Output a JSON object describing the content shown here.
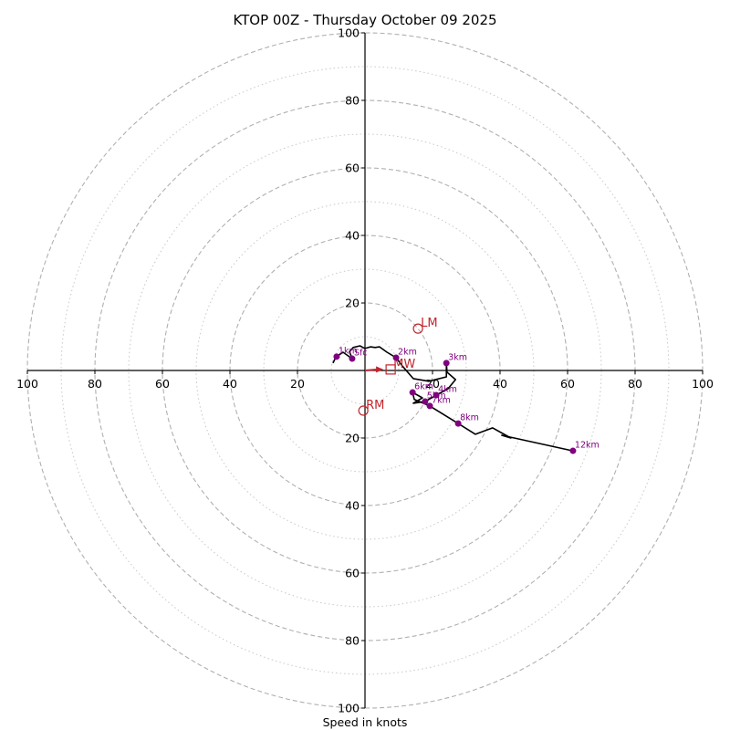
{
  "chart_data": {
    "type": "line",
    "subtype": "hodograph",
    "title": "KTOP 00Z - Thursday October 09 2025",
    "xlabel": "Speed in knots",
    "ylabel": "",
    "range_knots": 100,
    "ring_major": [
      20,
      40,
      60,
      80,
      100
    ],
    "ring_minor": [
      10,
      30,
      50,
      70,
      90
    ],
    "tick_labels": [
      "20",
      "40",
      "60",
      "80",
      "100"
    ],
    "grid": true,
    "trace_units": "knots (u, v)",
    "trace": [
      [
        -9.5,
        2.2
      ],
      [
        -8.9,
        3.4
      ],
      [
        -8.4,
        4.1
      ],
      [
        -6.5,
        5.4
      ],
      [
        -3.8,
        3.5
      ],
      [
        -4.6,
        5.6
      ],
      [
        -3.5,
        6.8
      ],
      [
        -1.5,
        7.3
      ],
      [
        0,
        6.5
      ],
      [
        1.6,
        7.0
      ],
      [
        3.0,
        6.8
      ],
      [
        4.3,
        7.0
      ],
      [
        6.5,
        5.4
      ],
      [
        9.2,
        3.8
      ],
      [
        11.0,
        1.4
      ],
      [
        14.3,
        -2.4
      ],
      [
        18.9,
        -3.2
      ],
      [
        24.1,
        -1.9
      ],
      [
        24.1,
        2.2
      ],
      [
        24.3,
        -0.5
      ],
      [
        26.8,
        -2.7
      ],
      [
        24.6,
        -5.4
      ],
      [
        21.1,
        -7.3
      ],
      [
        17.8,
        -9.2
      ],
      [
        14.3,
        -9.7
      ],
      [
        17.0,
        -8.1
      ],
      [
        14.1,
        -6.5
      ],
      [
        14.6,
        -8.6
      ],
      [
        19.2,
        -10.5
      ],
      [
        27.6,
        -15.7
      ],
      [
        32.7,
        -18.9
      ],
      [
        37.8,
        -17.0
      ],
      [
        43.2,
        -20.0
      ],
      [
        40.5,
        -19.2
      ],
      [
        61.6,
        -23.8
      ]
    ],
    "height_markers": [
      {
        "label": "Sfc",
        "u": -3.8,
        "v": 3.5
      },
      {
        "label": "1km",
        "u": -8.4,
        "v": 4.1
      },
      {
        "label": "2km",
        "u": 9.2,
        "v": 3.8
      },
      {
        "label": "3km",
        "u": 24.1,
        "v": 2.2
      },
      {
        "label": "4km",
        "u": 21.1,
        "v": -7.3
      },
      {
        "label": "5km",
        "u": 17.8,
        "v": -9.2
      },
      {
        "label": "6km",
        "u": 14.1,
        "v": -6.5
      },
      {
        "label": "7km",
        "u": 19.2,
        "v": -10.5
      },
      {
        "label": "8km",
        "u": 27.6,
        "v": -15.7
      },
      {
        "label": "12km",
        "u": 61.6,
        "v": -23.8
      }
    ],
    "storm_motion": [
      {
        "label": "LM",
        "u": 15.7,
        "v": 12.4,
        "marker": "circle"
      },
      {
        "label": "RM",
        "u": -0.5,
        "v": -11.9,
        "marker": "circle"
      },
      {
        "label": "MW",
        "u": 7.6,
        "v": 0.3,
        "marker": "square"
      }
    ],
    "mean_wind_arrow": {
      "from": [
        0,
        0
      ],
      "to": [
        7.6,
        0.3
      ]
    },
    "colors": {
      "trace": "#000000",
      "markers": "#800080",
      "storm": "#c0262d",
      "grid": "#b0b0b0"
    }
  }
}
